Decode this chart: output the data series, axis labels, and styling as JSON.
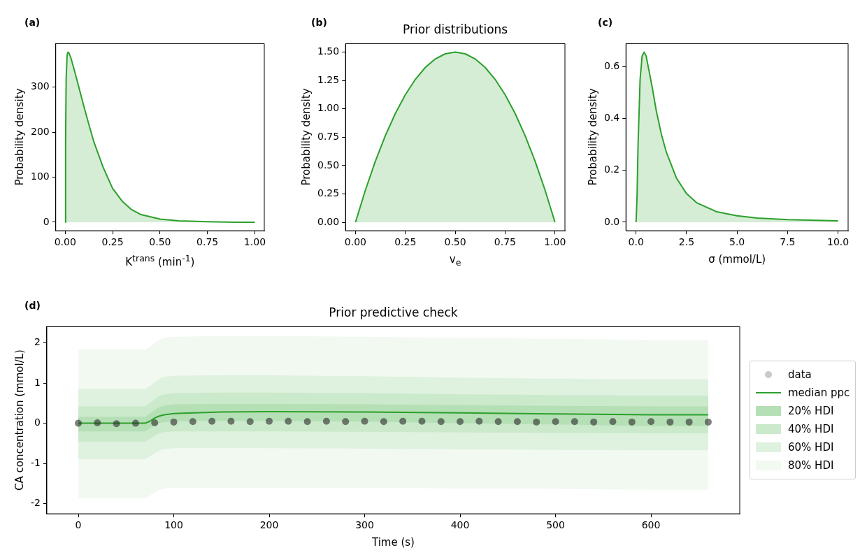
{
  "chart_data": [
    {
      "type": "area",
      "annotations": [
        "(a)"
      ],
      "xlabel": "K$^{trans}$ (min$^{-1}$)",
      "ylabel": "Probability density",
      "color": "#2ca02c",
      "x": [
        0,
        0.002,
        0.005,
        0.01,
        0.015,
        0.02,
        0.03,
        0.05,
        0.075,
        0.1,
        0.125,
        0.15,
        0.2,
        0.25,
        0.3,
        0.35,
        0.4,
        0.5,
        0.6,
        0.75,
        0.9,
        1.0
      ],
      "values": [
        0,
        180,
        320,
        372,
        378,
        376,
        365,
        335,
        295,
        255,
        217,
        180,
        122,
        75,
        47,
        28,
        17,
        7,
        3,
        1,
        0,
        0
      ],
      "xlim": [
        -0.05,
        1.05
      ],
      "ylim": [
        -19,
        397
      ],
      "xticks": [
        {
          "value": 0,
          "label": "0.00"
        },
        {
          "value": 0.25,
          "label": "0.25"
        },
        {
          "value": 0.5,
          "label": "0.50"
        },
        {
          "value": 0.75,
          "label": "0.75"
        },
        {
          "value": 1,
          "label": "1.00"
        }
      ],
      "yticks": [
        0,
        100,
        200,
        300
      ],
      "grid": false
    },
    {
      "type": "area",
      "title": "Prior distributions",
      "annotations": [
        "(b)"
      ],
      "xlabel": "v$_{e}$",
      "ylabel": "Probability density",
      "color": "#2ca02c",
      "x": [
        0,
        0.05,
        0.1,
        0.15,
        0.2,
        0.25,
        0.3,
        0.35,
        0.4,
        0.45,
        0.5,
        0.55,
        0.6,
        0.65,
        0.7,
        0.75,
        0.8,
        0.85,
        0.9,
        0.95,
        1.0
      ],
      "values": [
        0,
        0.285,
        0.54,
        0.765,
        0.96,
        1.125,
        1.26,
        1.365,
        1.44,
        1.485,
        1.5,
        1.485,
        1.44,
        1.365,
        1.26,
        1.125,
        0.96,
        0.765,
        0.54,
        0.285,
        0
      ],
      "xlim": [
        -0.05,
        1.05
      ],
      "ylim": [
        -0.075,
        1.575
      ],
      "xticks": [
        {
          "value": 0,
          "label": "0.00"
        },
        {
          "value": 0.25,
          "label": "0.25"
        },
        {
          "value": 0.5,
          "label": "0.50"
        },
        {
          "value": 0.75,
          "label": "0.75"
        },
        {
          "value": 1,
          "label": "1.00"
        }
      ],
      "yticks": [
        {
          "value": 0,
          "label": "0.00"
        },
        {
          "value": 0.25,
          "label": "0.25"
        },
        {
          "value": 0.5,
          "label": "0.50"
        },
        {
          "value": 0.75,
          "label": "0.75"
        },
        {
          "value": 1,
          "label": "1.00"
        },
        {
          "value": 1.25,
          "label": "1.25"
        },
        {
          "value": 1.5,
          "label": "1.50"
        }
      ],
      "grid": false
    },
    {
      "type": "area",
      "annotations": [
        "(c)"
      ],
      "xlabel": "σ (mmol/L)",
      "ylabel": "Probability density",
      "color": "#2ca02c",
      "x": [
        0,
        0.05,
        0.1,
        0.2,
        0.3,
        0.4,
        0.5,
        0.6,
        0.8,
        1.0,
        1.25,
        1.5,
        2,
        2.5,
        3,
        4,
        5,
        6,
        7.5,
        10
      ],
      "values": [
        0,
        0.1,
        0.3,
        0.55,
        0.64,
        0.655,
        0.64,
        0.6,
        0.52,
        0.43,
        0.34,
        0.27,
        0.17,
        0.11,
        0.075,
        0.04,
        0.025,
        0.016,
        0.01,
        0.005
      ],
      "xlim": [
        -0.5,
        10.5
      ],
      "ylim": [
        -0.033,
        0.688
      ],
      "xticks": [
        {
          "value": 0,
          "label": "0.0"
        },
        {
          "value": 2.5,
          "label": "2.5"
        },
        {
          "value": 5,
          "label": "5.0"
        },
        {
          "value": 7.5,
          "label": "7.5"
        },
        {
          "value": 10,
          "label": "10.0"
        }
      ],
      "yticks": [
        {
          "value": 0,
          "label": "0.0"
        },
        {
          "value": 0.2,
          "label": "0.2"
        },
        {
          "value": 0.4,
          "label": "0.4"
        },
        {
          "value": 0.6,
          "label": "0.6"
        }
      ],
      "grid": false
    },
    {
      "type": "line",
      "title": "Prior predictive check",
      "annotations": [
        "(d)"
      ],
      "xlabel": "Time (s)",
      "ylabel": "CA concentration (mmol/L)",
      "xlim": [
        -33,
        693
      ],
      "ylim": [
        -2.25,
        2.4
      ],
      "xticks": [
        0,
        100,
        200,
        300,
        400,
        500,
        600
      ],
      "yticks": [
        -2,
        -1,
        0,
        1,
        2
      ],
      "grid": false,
      "legend": "right",
      "series": [
        {
          "name": "data",
          "type": "scatter",
          "marker": "circle",
          "color": "#2b2b2b",
          "x": [
            0,
            20,
            40,
            60,
            80,
            100,
            120,
            140,
            160,
            180,
            200,
            220,
            240,
            260,
            280,
            300,
            320,
            340,
            360,
            380,
            400,
            420,
            440,
            460,
            480,
            500,
            520,
            540,
            560,
            580,
            600,
            620,
            640,
            660
          ],
          "values": [
            0,
            0.01,
            -0.01,
            0,
            0.01,
            0.03,
            0.04,
            0.05,
            0.05,
            0.04,
            0.05,
            0.05,
            0.04,
            0.05,
            0.04,
            0.05,
            0.04,
            0.05,
            0.05,
            0.04,
            0.04,
            0.05,
            0.04,
            0.04,
            0.03,
            0.04,
            0.04,
            0.03,
            0.04,
            0.03,
            0.04,
            0.03,
            0.03,
            0.03
          ]
        },
        {
          "name": "median ppc",
          "type": "line",
          "color": "#2ca02c",
          "x": [
            0,
            70,
            75,
            80,
            85,
            90,
            100,
            150,
            200,
            300,
            400,
            500,
            600,
            660
          ],
          "values": [
            0,
            0,
            0.05,
            0.13,
            0.18,
            0.21,
            0.24,
            0.28,
            0.29,
            0.28,
            0.26,
            0.23,
            0.21,
            0.21
          ]
        },
        {
          "name": "20% HDI",
          "type": "area",
          "color": "#b5dfb5",
          "x": [
            0,
            70,
            75,
            80,
            85,
            90,
            100,
            150,
            200,
            300,
            400,
            500,
            600,
            660
          ],
          "values": [
            null,
            null,
            null,
            null,
            null,
            null,
            null,
            null,
            null,
            null,
            null,
            null,
            null,
            null
          ],
          "lower": [
            -0.2,
            -0.2,
            -0.13,
            -0.05,
            0,
            0.03,
            0.05,
            0.06,
            0.06,
            0.04,
            0,
            -0.03,
            -0.07,
            -0.07
          ],
          "upper": [
            0.16,
            0.16,
            0.24,
            0.33,
            0.4,
            0.44,
            0.47,
            0.48,
            0.48,
            0.47,
            0.45,
            0.43,
            0.42,
            0.42
          ]
        },
        {
          "name": "40% HDI",
          "type": "area",
          "color": "#cbe9cb",
          "x": [
            0,
            70,
            75,
            80,
            85,
            90,
            100,
            150,
            200,
            300,
            400,
            500,
            600,
            660
          ],
          "values": [
            null,
            null,
            null,
            null,
            null,
            null,
            null,
            null,
            null,
            null,
            null,
            null,
            null,
            null
          ],
          "lower": [
            -0.46,
            -0.46,
            -0.39,
            -0.31,
            -0.25,
            -0.22,
            -0.2,
            -0.2,
            -0.2,
            -0.21,
            -0.23,
            -0.24,
            -0.25,
            -0.25
          ],
          "upper": [
            0.42,
            0.42,
            0.5,
            0.6,
            0.68,
            0.72,
            0.75,
            0.76,
            0.76,
            0.75,
            0.72,
            0.7,
            0.69,
            0.69
          ]
        },
        {
          "name": "60% HDI",
          "type": "area",
          "color": "#dff1df",
          "x": [
            0,
            70,
            75,
            80,
            85,
            90,
            100,
            150,
            200,
            300,
            400,
            500,
            600,
            660
          ],
          "values": [
            null,
            null,
            null,
            null,
            null,
            null,
            null,
            null,
            null,
            null,
            null,
            null,
            null,
            null
          ],
          "lower": [
            -0.89,
            -0.89,
            -0.82,
            -0.74,
            -0.68,
            -0.64,
            -0.62,
            -0.62,
            -0.62,
            -0.63,
            -0.65,
            -0.66,
            -0.67,
            -0.67
          ],
          "upper": [
            0.85,
            0.85,
            0.92,
            1.02,
            1.1,
            1.15,
            1.18,
            1.19,
            1.19,
            1.17,
            1.13,
            1.11,
            1.09,
            1.09
          ]
        },
        {
          "name": "80% HDI",
          "type": "area",
          "color": "#f1f9f1",
          "x": [
            0,
            70,
            75,
            80,
            85,
            90,
            100,
            150,
            200,
            300,
            400,
            500,
            600,
            660
          ],
          "values": [
            null,
            null,
            null,
            null,
            null,
            null,
            null,
            null,
            null,
            null,
            null,
            null,
            null,
            null
          ],
          "lower": [
            -1.87,
            -1.87,
            -1.8,
            -1.72,
            -1.66,
            -1.62,
            -1.6,
            -1.6,
            -1.6,
            -1.6,
            -1.62,
            -1.63,
            -1.65,
            -1.65
          ],
          "upper": [
            1.83,
            1.83,
            1.9,
            2.0,
            2.08,
            2.12,
            2.15,
            2.17,
            2.17,
            2.15,
            2.12,
            2.1,
            2.07,
            2.07
          ]
        }
      ]
    }
  ]
}
